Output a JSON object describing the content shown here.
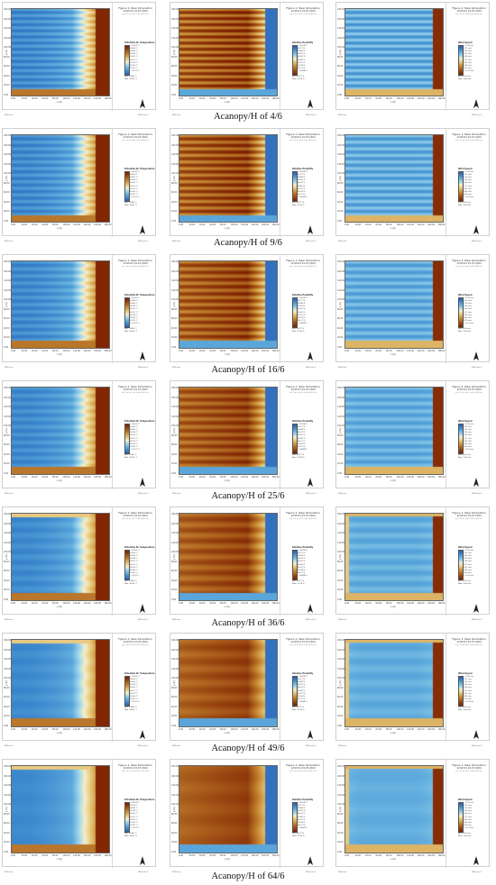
{
  "header": {
    "title": "Figure 1: New Simulation",
    "datetime": "12:00:01 01.07.2024",
    "subtitle": "x/y Cut at k=3 (z=1.6000 m)"
  },
  "axes": {
    "x_label": "x (m)",
    "y_label": "y (m)"
  },
  "footer": {
    "left": "ENVI-met",
    "right": "ENVI-met 5"
  },
  "legends": [
    {
      "title": "Potential Air Temperature",
      "labels": [
        "< 29.91 °C",
        "29.99 °C",
        "30.06 °C",
        "30.14 °C",
        "30.22 °C",
        "30.30 °C",
        "30.38 °C",
        "30.46 °C",
        "30.54 °C",
        "> 30.62 °C"
      ],
      "min": "Min: 29.84 °C",
      "max": "Max: 30.69 °C",
      "colors": [
        "#2a5fb5",
        "#3b86cc",
        "#62aede",
        "#9fd4ee",
        "#f3efc8",
        "#e7c77d",
        "#cf9840",
        "#b36a22",
        "#94400e",
        "#7a1e00"
      ]
    },
    {
      "title": "Relative Humidity",
      "labels": [
        "< 54.88 %",
        "55.11 %",
        "55.34 %",
        "55.57 %",
        "55.80 %",
        "56.02 %",
        "56.25 %",
        "56.48 %",
        "56.71 %",
        "> 56.94 %"
      ],
      "min": "Min: 54.77 %",
      "max": "Max: 57.05 %",
      "colors": [
        "#7a1e00",
        "#94400e",
        "#b36a22",
        "#cf9840",
        "#e7c77d",
        "#f3efc8",
        "#9fd4ee",
        "#62aede",
        "#3b86cc",
        "#2a5fb5"
      ]
    },
    {
      "title": "Wind Speed",
      "labels": [
        "< 0.13 m/s",
        "0.39 m/s",
        "0.65 m/s",
        "0.91 m/s",
        "1.17 m/s",
        "1.43 m/s",
        "1.69 m/s",
        "1.95 m/s",
        "2.21 m/s",
        "> 2.47 m/s"
      ],
      "min": "Min: 0.00 m/s",
      "max": "Max: 2.60 m/s",
      "colors": [
        "#7a1e00",
        "#94400e",
        "#b36a22",
        "#cf9840",
        "#e7c77d",
        "#f3efc8",
        "#9fd4ee",
        "#62aede",
        "#3b86cc",
        "#2a5fb5"
      ]
    }
  ],
  "x_ticks": [
    "0.00",
    "20.00",
    "40.00",
    "60.00",
    "80.00",
    "100.00",
    "120.00",
    "140.00",
    "160.00",
    "180.00"
  ],
  "y_ticks": [
    "180.00",
    "160.00",
    "140.00",
    "120.00",
    "100.00",
    "80.00",
    "60.00",
    "40.00",
    "20.00",
    "0.00"
  ],
  "rows": [
    {
      "caption": "Acanopy/H of 4/6",
      "stripes": 14,
      "blur": 0.0
    },
    {
      "caption": "Acanopy/H of 9/6",
      "stripes": 13,
      "blur": 0.15
    },
    {
      "caption": "Acanopy/H of 16/6",
      "stripes": 12,
      "blur": 0.3
    },
    {
      "caption": "Acanopy/H of 25/6",
      "stripes": 11,
      "blur": 0.45
    },
    {
      "caption": "Acanopy/H of 36/6",
      "stripes": 8,
      "blur": 0.65
    },
    {
      "caption": "Acanopy/H of 49/6",
      "stripes": 6,
      "blur": 0.8
    },
    {
      "caption": "Acanopy/H of 64/6",
      "stripes": 4,
      "blur": 0.95
    }
  ]
}
